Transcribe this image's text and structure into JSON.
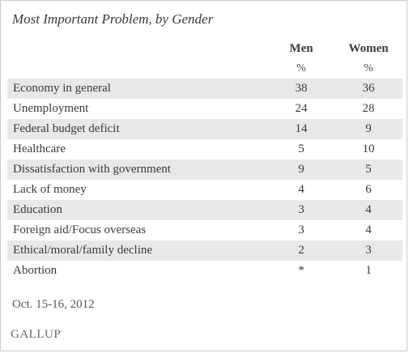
{
  "title": "Most Important Problem, by Gender",
  "chart_data": {
    "type": "table",
    "title": "Most Important Problem, by Gender",
    "columns": [
      "Men",
      "Women"
    ],
    "units": [
      "%",
      "%"
    ],
    "rows": [
      {
        "label": "Economy in general",
        "men": "38",
        "women": "36"
      },
      {
        "label": "Unemployment",
        "men": "24",
        "women": "28"
      },
      {
        "label": "Federal budget deficit",
        "men": "14",
        "women": "9"
      },
      {
        "label": "Healthcare",
        "men": "5",
        "women": "10"
      },
      {
        "label": "Dissatisfaction with government",
        "men": "9",
        "women": "5"
      },
      {
        "label": "Lack of money",
        "men": "4",
        "women": "6"
      },
      {
        "label": "Education",
        "men": "3",
        "women": "4"
      },
      {
        "label": "Foreign aid/Focus overseas",
        "men": "3",
        "women": "4"
      },
      {
        "label": "Ethical/moral/family decline",
        "men": "2",
        "women": "3"
      },
      {
        "label": "Abortion",
        "men": "*",
        "women": "1"
      }
    ],
    "row_shading": [
      "#e8e8e8",
      "#ffffff"
    ]
  },
  "footer": {
    "date": "Oct. 15-16, 2012",
    "source": "GALLUP",
    "source_mark": "'"
  }
}
